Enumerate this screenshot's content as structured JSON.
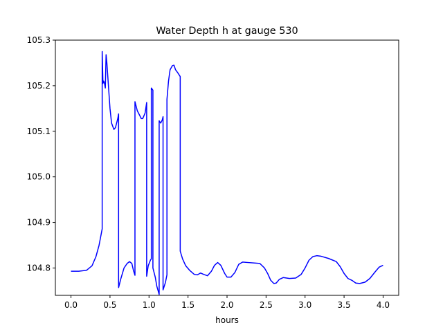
{
  "chart_data": {
    "type": "line",
    "title": "Water Depth h at gauge 530",
    "xlabel": "hours",
    "ylabel": "",
    "xlim": [
      -0.2,
      4.2
    ],
    "ylim": [
      104.74,
      105.3
    ],
    "xticks": [
      "0.0",
      "0.5",
      "1.0",
      "1.5",
      "2.0",
      "2.5",
      "3.0",
      "3.5",
      "4.0"
    ],
    "yticks": [
      "104.8",
      "104.9",
      "105.0",
      "105.1",
      "105.2",
      "105.3"
    ],
    "grid": false,
    "line_color": "#0000ff",
    "series": [
      {
        "name": "",
        "points": [
          [
            0.0,
            104.793
          ],
          [
            0.1,
            104.793
          ],
          [
            0.2,
            104.795
          ],
          [
            0.27,
            104.805
          ],
          [
            0.32,
            104.825
          ],
          [
            0.36,
            104.85
          ],
          [
            0.4,
            104.886
          ],
          [
            0.4,
            105.275
          ],
          [
            0.41,
            105.205
          ],
          [
            0.42,
            105.21
          ],
          [
            0.43,
            105.205
          ],
          [
            0.44,
            105.195
          ],
          [
            0.45,
            105.268
          ],
          [
            0.46,
            105.25
          ],
          [
            0.48,
            105.2
          ],
          [
            0.5,
            105.15
          ],
          [
            0.52,
            105.118
          ],
          [
            0.55,
            105.104
          ],
          [
            0.57,
            105.108
          ],
          [
            0.6,
            105.128
          ],
          [
            0.61,
            105.138
          ],
          [
            0.61,
            104.757
          ],
          [
            0.64,
            104.777
          ],
          [
            0.68,
            104.8
          ],
          [
            0.72,
            104.81
          ],
          [
            0.75,
            104.814
          ],
          [
            0.78,
            104.81
          ],
          [
            0.8,
            104.795
          ],
          [
            0.82,
            104.784
          ],
          [
            0.82,
            105.165
          ],
          [
            0.85,
            105.145
          ],
          [
            0.88,
            105.135
          ],
          [
            0.9,
            105.128
          ],
          [
            0.92,
            105.128
          ],
          [
            0.95,
            105.14
          ],
          [
            0.97,
            105.163
          ],
          [
            0.97,
            104.782
          ],
          [
            0.99,
            104.805
          ],
          [
            1.02,
            104.818
          ],
          [
            1.03,
            104.82
          ],
          [
            1.03,
            105.195
          ],
          [
            1.05,
            105.19
          ],
          [
            1.05,
            104.8
          ],
          [
            1.08,
            104.78
          ],
          [
            1.1,
            104.76
          ],
          [
            1.13,
            104.742
          ],
          [
            1.13,
            105.123
          ],
          [
            1.15,
            105.118
          ],
          [
            1.17,
            105.125
          ],
          [
            1.18,
            105.132
          ],
          [
            1.18,
            104.752
          ],
          [
            1.21,
            104.768
          ],
          [
            1.23,
            104.785
          ],
          [
            1.23,
            105.17
          ],
          [
            1.25,
            105.21
          ],
          [
            1.27,
            105.235
          ],
          [
            1.3,
            105.244
          ],
          [
            1.32,
            105.245
          ],
          [
            1.34,
            105.235
          ],
          [
            1.37,
            105.228
          ],
          [
            1.4,
            105.22
          ],
          [
            1.4,
            104.837
          ],
          [
            1.43,
            104.82
          ],
          [
            1.47,
            104.805
          ],
          [
            1.52,
            104.795
          ],
          [
            1.58,
            104.786
          ],
          [
            1.62,
            104.785
          ],
          [
            1.66,
            104.789
          ],
          [
            1.7,
            104.786
          ],
          [
            1.75,
            104.783
          ],
          [
            1.8,
            104.793
          ],
          [
            1.84,
            104.806
          ],
          [
            1.88,
            104.812
          ],
          [
            1.92,
            104.806
          ],
          [
            1.97,
            104.788
          ],
          [
            2.0,
            104.78
          ],
          [
            2.05,
            104.78
          ],
          [
            2.1,
            104.79
          ],
          [
            2.15,
            104.808
          ],
          [
            2.2,
            104.813
          ],
          [
            2.27,
            104.812
          ],
          [
            2.35,
            104.811
          ],
          [
            2.42,
            104.81
          ],
          [
            2.48,
            104.8
          ],
          [
            2.52,
            104.788
          ],
          [
            2.56,
            104.773
          ],
          [
            2.6,
            104.766
          ],
          [
            2.63,
            104.767
          ],
          [
            2.67,
            104.775
          ],
          [
            2.72,
            104.779
          ],
          [
            2.8,
            104.777
          ],
          [
            2.88,
            104.778
          ],
          [
            2.95,
            104.786
          ],
          [
            3.0,
            104.8
          ],
          [
            3.05,
            104.817
          ],
          [
            3.1,
            104.825
          ],
          [
            3.15,
            104.827
          ],
          [
            3.2,
            104.826
          ],
          [
            3.3,
            104.821
          ],
          [
            3.4,
            104.814
          ],
          [
            3.45,
            104.803
          ],
          [
            3.5,
            104.788
          ],
          [
            3.55,
            104.777
          ],
          [
            3.6,
            104.773
          ],
          [
            3.65,
            104.767
          ],
          [
            3.7,
            104.766
          ],
          [
            3.77,
            104.769
          ],
          [
            3.83,
            104.777
          ],
          [
            3.9,
            104.792
          ],
          [
            3.95,
            104.802
          ],
          [
            4.0,
            104.806
          ]
        ]
      }
    ]
  }
}
